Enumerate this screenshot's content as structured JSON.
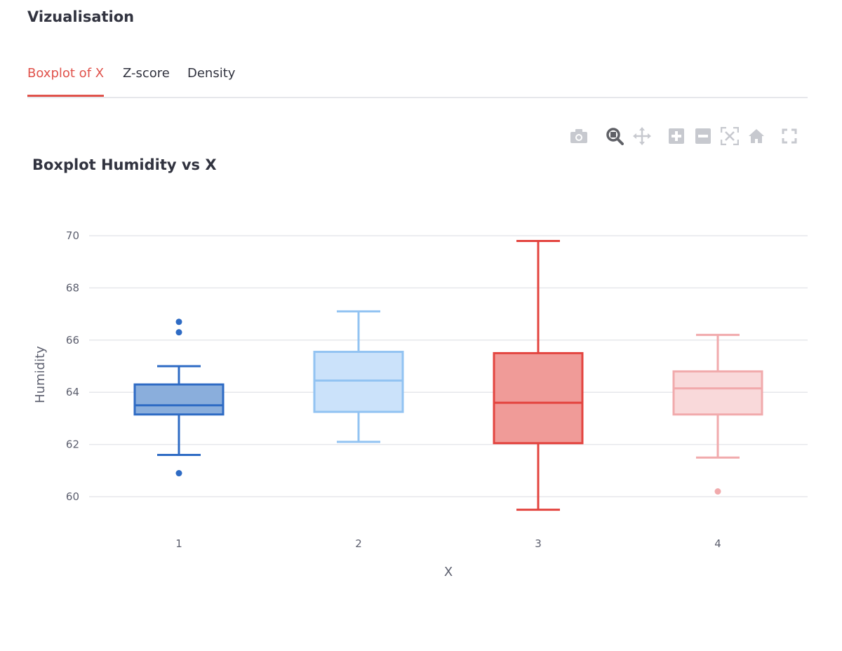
{
  "section": {
    "title": "Vizualisation"
  },
  "tabs": [
    {
      "label": "Boxplot of X",
      "active": true
    },
    {
      "label": "Z-score",
      "active": false
    },
    {
      "label": "Density",
      "active": false
    }
  ],
  "toolbar": [
    {
      "icon": "camera-icon",
      "label": "Download plot as png"
    },
    {
      "icon": "zoom-icon",
      "label": "Zoom"
    },
    {
      "icon": "pan-icon",
      "label": "Pan"
    },
    {
      "icon": "zoom-in-icon",
      "label": "Zoom in"
    },
    {
      "icon": "zoom-out-icon",
      "label": "Zoom out"
    },
    {
      "icon": "autoscale-icon",
      "label": "Autoscale"
    },
    {
      "icon": "home-icon",
      "label": "Reset axes"
    },
    {
      "icon": "fullscreen-icon",
      "label": "Fullscreen"
    }
  ],
  "chart_data": {
    "type": "box",
    "title": "Boxplot Humidity vs X",
    "xlabel": "X",
    "ylabel": "Humidity",
    "ylim": [
      59.3,
      70.3
    ],
    "yticks": [
      60,
      62,
      64,
      66,
      68,
      70
    ],
    "grid": true,
    "legend": "none",
    "categories": [
      "1",
      "2",
      "3",
      "4"
    ],
    "boxes": [
      {
        "x": "1",
        "q1": 63.15,
        "median": 63.5,
        "q3": 64.3,
        "whisker_low": 61.6,
        "whisker_high": 65.0,
        "outliers": [
          66.7,
          66.3,
          60.9
        ],
        "color": "#2e6bc4",
        "fill": "#8aaedc"
      },
      {
        "x": "2",
        "q1": 63.25,
        "median": 64.45,
        "q3": 65.55,
        "whisker_low": 62.1,
        "whisker_high": 67.1,
        "outliers": [],
        "color": "#92c3f2",
        "fill": "#cbe2fa"
      },
      {
        "x": "3",
        "q1": 62.05,
        "median": 63.6,
        "q3": 65.5,
        "whisker_low": 59.5,
        "whisker_high": 69.8,
        "outliers": [],
        "color": "#e3443f",
        "fill": "#f09b98"
      },
      {
        "x": "4",
        "q1": 63.15,
        "median": 64.15,
        "q3": 64.8,
        "whisker_low": 61.5,
        "whisker_high": 66.2,
        "outliers": [
          60.2
        ],
        "color": "#f1aaac",
        "fill": "#f9d9da"
      }
    ]
  }
}
